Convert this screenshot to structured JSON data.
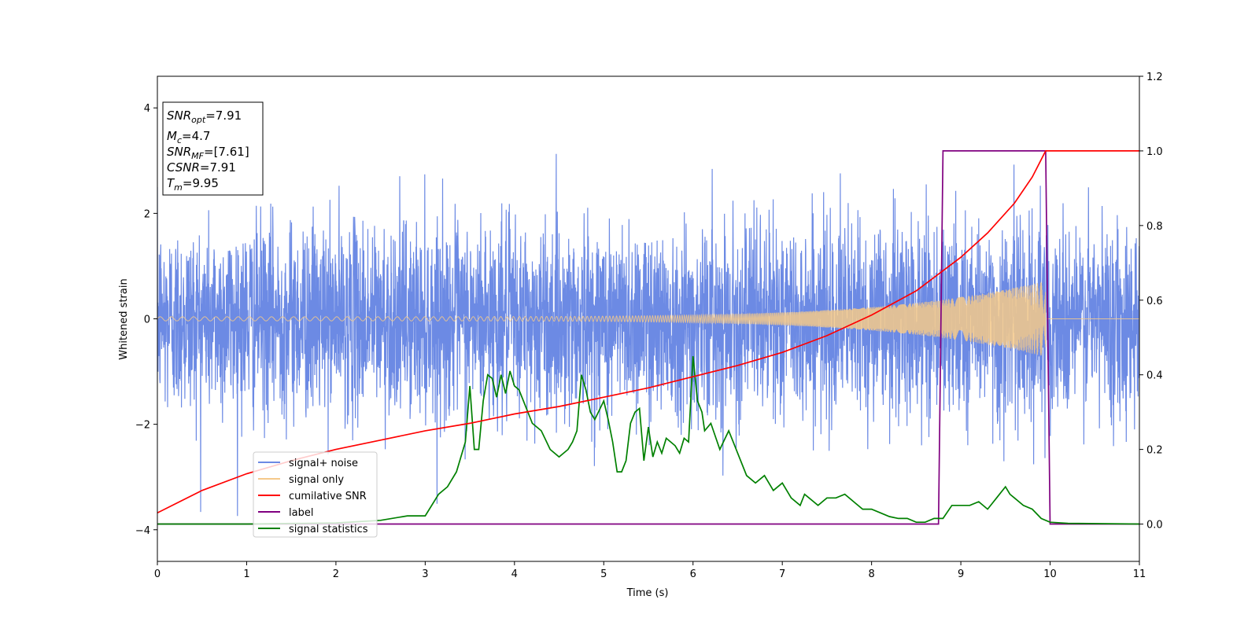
{
  "chart_data": {
    "type": "line",
    "xlabel": "Time (s)",
    "ylabel": "Whitened strain",
    "xlim": [
      0,
      11
    ],
    "ylim_left": [
      -4.6,
      4.6
    ],
    "ylim_right": [
      -0.1,
      1.2
    ],
    "x_ticks": [
      0,
      1,
      2,
      3,
      4,
      5,
      6,
      7,
      8,
      9,
      10,
      11
    ],
    "y_ticks_left": [
      -4,
      -2,
      0,
      2,
      4
    ],
    "y_ticks_right": [
      0.0,
      0.2,
      0.4,
      0.6,
      0.8,
      1.0,
      1.2
    ],
    "annotation": {
      "snr_opt": {
        "symbol": "SNR",
        "subscript": "opt",
        "value": "=7.91"
      },
      "mc": {
        "symbol": "M",
        "subscript": "c",
        "value": "=4.7"
      },
      "snr_mf": {
        "symbol": "SNR",
        "subscript": "MF",
        "value": "=[7.61]"
      },
      "csnr": {
        "symbol": "CSNR",
        "value": "=7.91"
      },
      "tm": {
        "symbol": "T",
        "subscript": "m",
        "value": "=9.95"
      }
    },
    "legend_position": "lower-left",
    "series": [
      {
        "name": "signal+ noise",
        "axis": "left",
        "color": "#6c8ae4",
        "description_stats": {
          "std": 0.9,
          "range": [
            -4.1,
            4.2
          ]
        }
      },
      {
        "name": "signal only",
        "axis": "left",
        "color": "#f5c98a",
        "chirp": {
          "start_amp": 0.04,
          "end_amp": 0.72,
          "end_time": 9.95,
          "start_freq": 8,
          "end_freq": 60
        }
      },
      {
        "name": "cumilative SNR",
        "axis": "right",
        "color": "#ff0000",
        "x": [
          0,
          0.5,
          1,
          1.5,
          2,
          2.5,
          3,
          3.5,
          4,
          4.5,
          5,
          5.5,
          6,
          6.5,
          7,
          7.5,
          8,
          8.5,
          9,
          9.3,
          9.6,
          9.8,
          9.95,
          10,
          11
        ],
        "y": [
          0.03,
          0.09,
          0.135,
          0.17,
          0.2,
          0.225,
          0.25,
          0.27,
          0.295,
          0.315,
          0.34,
          0.365,
          0.395,
          0.425,
          0.46,
          0.505,
          0.56,
          0.625,
          0.715,
          0.78,
          0.86,
          0.93,
          1.0,
          1.0,
          1.0
        ]
      },
      {
        "name": "label",
        "axis": "right",
        "color": "#800080",
        "x": [
          0,
          8.75,
          8.8,
          9.95,
          10.0,
          11
        ],
        "y": [
          0,
          0,
          1,
          1,
          0,
          0
        ]
      },
      {
        "name": "signal statistics",
        "axis": "right",
        "color": "#008000",
        "x": [
          0,
          1,
          2,
          2.5,
          2.8,
          3.0,
          3.15,
          3.25,
          3.35,
          3.45,
          3.5,
          3.55,
          3.6,
          3.65,
          3.7,
          3.75,
          3.8,
          3.85,
          3.9,
          3.95,
          4.0,
          4.05,
          4.1,
          4.2,
          4.3,
          4.4,
          4.5,
          4.6,
          4.65,
          4.7,
          4.75,
          4.8,
          4.85,
          4.9,
          5.0,
          5.05,
          5.1,
          5.15,
          5.2,
          5.25,
          5.3,
          5.35,
          5.4,
          5.45,
          5.5,
          5.55,
          5.6,
          5.65,
          5.7,
          5.8,
          5.85,
          5.9,
          5.95,
          6.0,
          6.05,
          6.1,
          6.13,
          6.2,
          6.3,
          6.4,
          6.45,
          6.5,
          6.6,
          6.7,
          6.8,
          6.9,
          7.0,
          7.1,
          7.2,
          7.25,
          7.3,
          7.4,
          7.5,
          7.6,
          7.7,
          7.8,
          7.9,
          8.0,
          8.1,
          8.2,
          8.3,
          8.4,
          8.5,
          8.6,
          8.7,
          8.8,
          8.9,
          9.0,
          9.1,
          9.2,
          9.3,
          9.4,
          9.5,
          9.55,
          9.6,
          9.7,
          9.8,
          9.9,
          10.0,
          10.2,
          11
        ],
        "y": [
          0,
          0,
          0.003,
          0.01,
          0.022,
          0.022,
          0.08,
          0.1,
          0.14,
          0.22,
          0.37,
          0.2,
          0.2,
          0.33,
          0.4,
          0.39,
          0.34,
          0.4,
          0.35,
          0.41,
          0.37,
          0.36,
          0.33,
          0.27,
          0.25,
          0.2,
          0.18,
          0.2,
          0.22,
          0.25,
          0.4,
          0.36,
          0.3,
          0.28,
          0.33,
          0.28,
          0.22,
          0.14,
          0.14,
          0.17,
          0.27,
          0.3,
          0.31,
          0.17,
          0.26,
          0.18,
          0.22,
          0.19,
          0.23,
          0.21,
          0.19,
          0.23,
          0.22,
          0.45,
          0.33,
          0.3,
          0.25,
          0.27,
          0.2,
          0.25,
          0.22,
          0.19,
          0.13,
          0.11,
          0.13,
          0.09,
          0.11,
          0.07,
          0.05,
          0.08,
          0.07,
          0.05,
          0.07,
          0.07,
          0.08,
          0.06,
          0.04,
          0.04,
          0.03,
          0.02,
          0.015,
          0.015,
          0.005,
          0.005,
          0.015,
          0.015,
          0.05,
          0.05,
          0.05,
          0.06,
          0.04,
          0.07,
          0.1,
          0.08,
          0.07,
          0.05,
          0.04,
          0.015,
          0.005,
          0.002,
          0
        ]
      }
    ]
  }
}
